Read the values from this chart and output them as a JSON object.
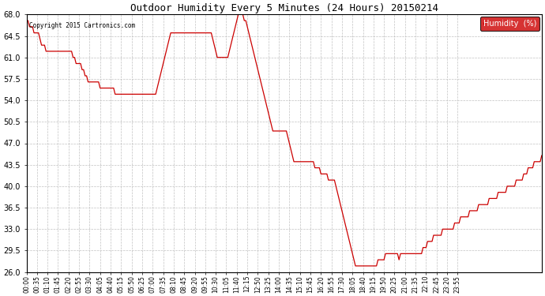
{
  "title": "Outdoor Humidity Every 5 Minutes (24 Hours) 20150214",
  "copyright": "Copyright 2015 Cartronics.com",
  "legend_label": "Humidity  (%)",
  "legend_bg": "#cc0000",
  "legend_fg": "#ffffff",
  "line_color": "#cc0000",
  "background_color": "#ffffff",
  "grid_color": "#bbbbbb",
  "ylim": [
    26.0,
    68.0
  ],
  "yticks": [
    26.0,
    29.5,
    33.0,
    36.5,
    40.0,
    43.5,
    47.0,
    50.5,
    54.0,
    57.5,
    61.0,
    64.5,
    68.0
  ],
  "tick_interval_min": 35,
  "humidity_data": [
    67,
    67,
    66,
    66,
    66,
    65,
    65,
    65,
    65,
    64,
    63,
    63,
    63,
    62,
    62,
    62,
    62,
    62,
    62,
    62,
    62,
    62,
    62,
    62,
    62,
    62,
    62,
    62,
    62,
    62,
    62,
    61,
    61,
    60,
    60,
    60,
    60,
    59,
    59,
    58,
    58,
    57,
    57,
    57,
    57,
    57,
    57,
    57,
    57,
    56,
    56,
    56,
    56,
    56,
    56,
    56,
    56,
    56,
    56,
    55,
    55,
    55,
    55,
    55,
    55,
    55,
    55,
    55,
    55,
    55,
    55,
    55,
    55,
    55,
    55,
    55,
    55,
    55,
    55,
    55,
    55,
    55,
    55,
    55,
    55,
    55,
    55,
    56,
    57,
    58,
    59,
    60,
    61,
    62,
    63,
    64,
    65,
    65,
    65,
    65,
    65,
    65,
    65,
    65,
    65,
    65,
    65,
    65,
    65,
    65,
    65,
    65,
    65,
    65,
    65,
    65,
    65,
    65,
    65,
    65,
    65,
    65,
    65,
    65,
    64,
    63,
    62,
    61,
    61,
    61,
    61,
    61,
    61,
    61,
    61,
    62,
    63,
    64,
    65,
    66,
    67,
    68,
    68,
    68,
    68,
    67,
    67,
    66,
    65,
    64,
    63,
    62,
    61,
    60,
    59,
    58,
    57,
    56,
    55,
    54,
    53,
    52,
    51,
    50,
    49,
    49,
    49,
    49,
    49,
    49,
    49,
    49,
    49,
    49,
    48,
    47,
    46,
    45,
    44,
    44,
    44,
    44,
    44,
    44,
    44,
    44,
    44,
    44,
    44,
    44,
    44,
    44,
    43,
    43,
    43,
    43,
    42,
    42,
    42,
    42,
    42,
    41,
    41,
    41,
    41,
    41,
    40,
    39,
    38,
    37,
    36,
    35,
    34,
    33,
    32,
    31,
    30,
    29,
    28,
    27,
    27,
    27,
    27,
    27,
    27,
    27,
    27,
    27,
    27,
    27,
    27,
    27,
    27,
    27,
    28,
    28,
    28,
    28,
    28,
    29,
    29,
    29,
    29,
    29,
    29,
    29,
    29,
    29,
    28,
    29,
    29,
    29,
    29,
    29,
    29,
    29,
    29,
    29,
    29,
    29,
    29,
    29,
    29,
    29,
    30,
    30,
    30,
    31,
    31,
    31,
    31,
    32,
    32,
    32,
    32,
    32,
    32,
    33,
    33,
    33,
    33,
    33,
    33,
    33,
    33,
    34,
    34,
    34,
    34,
    35,
    35,
    35,
    35,
    35,
    35,
    36,
    36,
    36,
    36,
    36,
    36,
    37,
    37,
    37,
    37,
    37,
    37,
    37,
    38,
    38,
    38,
    38,
    38,
    38,
    39,
    39,
    39,
    39,
    39,
    39,
    40,
    40,
    40,
    40,
    40,
    40,
    41,
    41,
    41,
    41,
    41,
    42,
    42,
    42,
    43,
    43,
    43,
    43,
    44,
    44,
    44,
    44,
    44,
    45
  ]
}
